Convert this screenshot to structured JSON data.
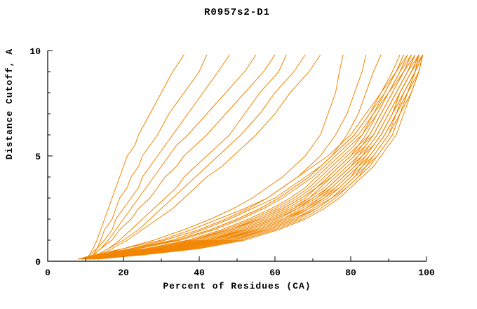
{
  "colors": {
    "curve": "#f28500",
    "axis": "#000000",
    "text": "#000000",
    "background": "#ffffff"
  },
  "chart_data": {
    "type": "line",
    "title": "R0957s2-D1",
    "xlabel": "Percent of Residues (CA)",
    "ylabel": "Distance Cutoff, A",
    "xlim": [
      0,
      100
    ],
    "ylim": [
      0,
      10
    ],
    "xticks": [
      0,
      20,
      40,
      60,
      80,
      100
    ],
    "yticks": [
      0,
      5,
      10
    ],
    "x_minor_step": 10,
    "y_minor_step": 1,
    "grid": false,
    "legend": "none",
    "y_levels": [
      0.1,
      0.3,
      0.6,
      1.0,
      1.5,
      2.0,
      2.5,
      3.0,
      3.5,
      4.0,
      4.5,
      5.0,
      5.5,
      6.0,
      7.0,
      8.0,
      9.0,
      9.8
    ],
    "series_x_values": [
      [
        10,
        11,
        12,
        13,
        14,
        15,
        16,
        17,
        18,
        19,
        20,
        21,
        23,
        24,
        27,
        30,
        33,
        36
      ],
      [
        10,
        11,
        13,
        14,
        15,
        17,
        18,
        19,
        21,
        22,
        24,
        25,
        27,
        29,
        32,
        36,
        40,
        42
      ],
      [
        10,
        12,
        13,
        15,
        17,
        18,
        20,
        22,
        24,
        25,
        27,
        29,
        31,
        33,
        37,
        41,
        45,
        48
      ],
      [
        11,
        12,
        14,
        16,
        18,
        20,
        22,
        24,
        26,
        28,
        30,
        32,
        34,
        37,
        42,
        47,
        52,
        55
      ],
      [
        10,
        12,
        14,
        17,
        19,
        22,
        24,
        27,
        29,
        31,
        34,
        36,
        39,
        42,
        47,
        52,
        57,
        60
      ],
      [
        11,
        13,
        16,
        19,
        22,
        25,
        28,
        31,
        34,
        36,
        39,
        42,
        45,
        48,
        52,
        56,
        61,
        63
      ],
      [
        11,
        13,
        16,
        20,
        24,
        27,
        30,
        33,
        36,
        39,
        42,
        45,
        48,
        51,
        56,
        60,
        65,
        68
      ],
      [
        12,
        14,
        17,
        21,
        25,
        29,
        33,
        36,
        39,
        42,
        46,
        49,
        52,
        55,
        60,
        64,
        69,
        72
      ],
      [
        10,
        14,
        20,
        28,
        36,
        43,
        49,
        54,
        58,
        62,
        65,
        68,
        70,
        72,
        74,
        76,
        77,
        78
      ],
      [
        11,
        15,
        22,
        31,
        40,
        47,
        53,
        58,
        62,
        66,
        69,
        72,
        74,
        76,
        79,
        81,
        83,
        84
      ],
      [
        10,
        16,
        24,
        34,
        43,
        50,
        56,
        61,
        65,
        69,
        72,
        75,
        77,
        79,
        82,
        84,
        86,
        88
      ],
      [
        8,
        12,
        20,
        30,
        38,
        45,
        52,
        58,
        62,
        66,
        70,
        74,
        77,
        80,
        84,
        88,
        91,
        93
      ],
      [
        9,
        13,
        22,
        33,
        41,
        48,
        54,
        60,
        64,
        68,
        72,
        75,
        78,
        81,
        85,
        88,
        92,
        94
      ],
      [
        9,
        14,
        24,
        35,
        44,
        51,
        57,
        62,
        66,
        70,
        73,
        76,
        79,
        82,
        86,
        89,
        92,
        95
      ],
      [
        10,
        15,
        26,
        37,
        46,
        53,
        59,
        64,
        68,
        71,
        74,
        77,
        80,
        83,
        86,
        90,
        93,
        95
      ],
      [
        8,
        13,
        23,
        34,
        43,
        50,
        56,
        61,
        65,
        69,
        72,
        75,
        78,
        81,
        85,
        89,
        92,
        94
      ],
      [
        10,
        16,
        28,
        39,
        48,
        55,
        61,
        66,
        70,
        73,
        76,
        79,
        82,
        84,
        87,
        90,
        93,
        96
      ],
      [
        9,
        15,
        27,
        38,
        47,
        54,
        60,
        65,
        69,
        72,
        75,
        78,
        81,
        83,
        87,
        90,
        94,
        96
      ],
      [
        10,
        17,
        29,
        41,
        50,
        57,
        63,
        68,
        71,
        74,
        77,
        80,
        83,
        85,
        88,
        91,
        94,
        97
      ],
      [
        11,
        18,
        31,
        43,
        52,
        59,
        65,
        69,
        73,
        76,
        79,
        82,
        84,
        86,
        89,
        92,
        95,
        97
      ],
      [
        9,
        16,
        28,
        40,
        49,
        56,
        62,
        67,
        71,
        74,
        77,
        80,
        82,
        85,
        88,
        91,
        94,
        96
      ],
      [
        10,
        18,
        30,
        42,
        51,
        58,
        64,
        69,
        72,
        75,
        78,
        81,
        83,
        86,
        89,
        92,
        95,
        98
      ],
      [
        11,
        19,
        32,
        44,
        53,
        60,
        66,
        70,
        74,
        77,
        80,
        82,
        85,
        87,
        90,
        93,
        96,
        98
      ],
      [
        12,
        20,
        34,
        46,
        55,
        62,
        67,
        72,
        75,
        78,
        81,
        83,
        86,
        88,
        91,
        93,
        96,
        98
      ],
      [
        10,
        19,
        33,
        45,
        54,
        61,
        66,
        71,
        74,
        77,
        80,
        83,
        85,
        87,
        90,
        93,
        96,
        99
      ],
      [
        11,
        21,
        35,
        47,
        56,
        63,
        68,
        73,
        76,
        79,
        82,
        84,
        86,
        88,
        91,
        94,
        97,
        99
      ],
      [
        12,
        22,
        36,
        48,
        57,
        64,
        69,
        74,
        77,
        80,
        82,
        85,
        87,
        89,
        92,
        94,
        97,
        99
      ],
      [
        13,
        23,
        38,
        50,
        59,
        66,
        71,
        75,
        78,
        81,
        84,
        86,
        88,
        90,
        92,
        95,
        97,
        99
      ],
      [
        11,
        20,
        34,
        46,
        56,
        63,
        69,
        73,
        77,
        80,
        83,
        85,
        87,
        89,
        92,
        95,
        98,
        99
      ],
      [
        12,
        22,
        37,
        49,
        58,
        65,
        70,
        75,
        78,
        81,
        83,
        86,
        88,
        90,
        93,
        95,
        98,
        99
      ],
      [
        13,
        24,
        39,
        51,
        60,
        67,
        72,
        76,
        79,
        82,
        85,
        87,
        89,
        91,
        93,
        96,
        98,
        99
      ],
      [
        9,
        17,
        30,
        43,
        53,
        60,
        66,
        71,
        75,
        78,
        81,
        84,
        86,
        88,
        91,
        94,
        97,
        98
      ],
      [
        10,
        19,
        32,
        45,
        55,
        62,
        68,
        72,
        76,
        79,
        82,
        85,
        87,
        89,
        92,
        95,
        97,
        98
      ],
      [
        12,
        21,
        36,
        48,
        58,
        65,
        71,
        75,
        79,
        82,
        84,
        87,
        89,
        91,
        93,
        96,
        98,
        99
      ],
      [
        13,
        25,
        40,
        52,
        61,
        68,
        73,
        77,
        80,
        83,
        86,
        88,
        90,
        92,
        94,
        96,
        98,
        99
      ],
      [
        8,
        14,
        26,
        38,
        48,
        56,
        62,
        67,
        71,
        75,
        78,
        81,
        84,
        86,
        89,
        92,
        95,
        97
      ],
      [
        9,
        16,
        29,
        42,
        52,
        59,
        65,
        70,
        74,
        77,
        80,
        83,
        86,
        88,
        91,
        93,
        96,
        98
      ]
    ]
  }
}
